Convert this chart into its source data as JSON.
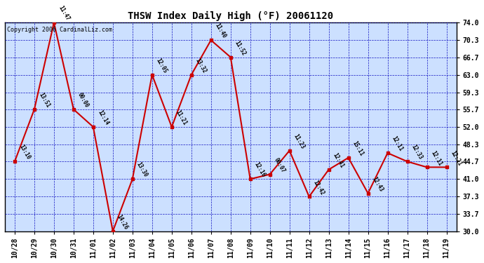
{
  "title": "THSW Index Daily High (°F) 20061120",
  "copyright": "Copyright 2006 CardinalLiz.com",
  "x_ticks": [
    "10/28",
    "10/29",
    "10/30",
    "10/31",
    "11/01",
    "11/02",
    "11/03",
    "11/04",
    "11/05",
    "11/06",
    "11/07",
    "11/08",
    "11/09",
    "11/10",
    "11/11",
    "11/12",
    "11/13",
    "11/14",
    "11/15",
    "11/16",
    "11/17",
    "11/18",
    "11/19"
  ],
  "y_values": [
    44.7,
    55.7,
    74.0,
    55.7,
    52.0,
    30.0,
    41.0,
    63.0,
    52.0,
    63.0,
    70.3,
    66.7,
    41.0,
    42.0,
    47.0,
    37.3,
    43.0,
    45.5,
    38.0,
    46.5,
    44.7,
    43.5,
    43.5
  ],
  "point_labels": [
    "13:10",
    "13:51",
    "11:47",
    "00:00",
    "12:14",
    "14:26",
    "13:30",
    "12:05",
    "11:21",
    "13:32",
    "11:40",
    "11:52",
    "12:16",
    "00:07",
    "11:23",
    "12:42",
    "12:41",
    "15:11",
    "12:43",
    "12:11",
    "12:33",
    "12:11",
    "12:21"
  ],
  "ylim": [
    30.0,
    74.0
  ],
  "yticks": [
    30.0,
    33.7,
    37.3,
    41.0,
    44.7,
    48.3,
    52.0,
    55.7,
    59.3,
    63.0,
    66.7,
    70.3,
    74.0
  ],
  "line_color": "#cc0000",
  "marker_color": "#cc0000",
  "bg_color": "#cce0ff",
  "grid_color": "#0000bb",
  "title_color": "#000000",
  "border_color": "#000000",
  "text_color": "#000000",
  "fig_bg": "#ffffff"
}
